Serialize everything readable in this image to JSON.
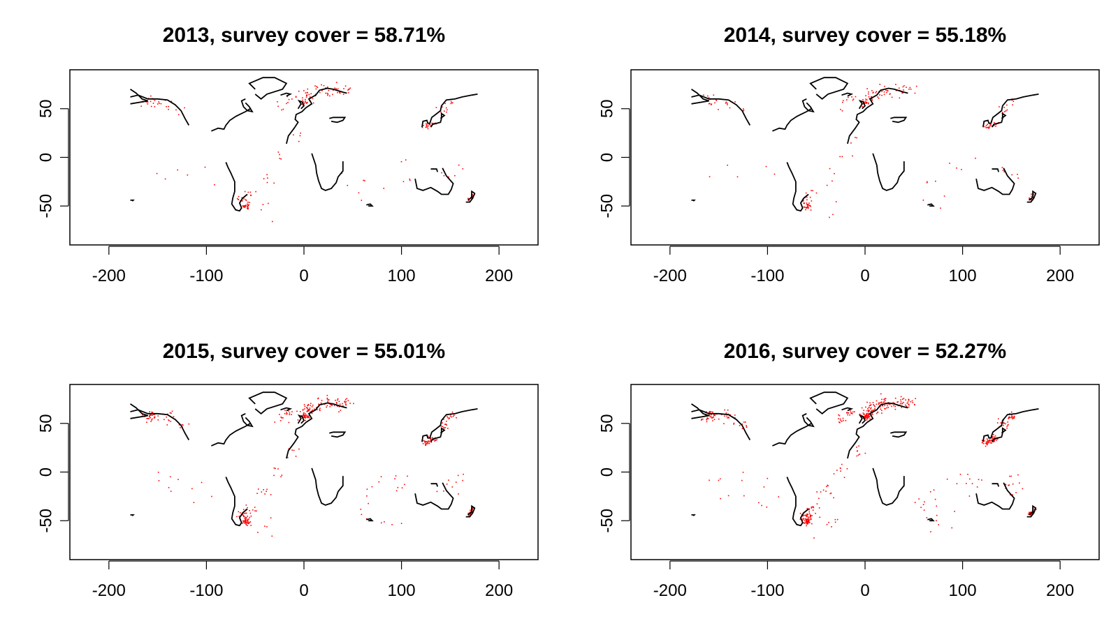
{
  "chart_data": [
    {
      "type": "scatter",
      "title": "2013, survey cover = 58.71%",
      "xlim": [
        -240,
        240
      ],
      "ylim": [
        -90,
        90
      ],
      "x_ticks": [
        -200,
        -100,
        0,
        100,
        200
      ],
      "y_ticks": [
        50,
        0,
        -50
      ],
      "points_color": "#ff0000",
      "outline_color": "#000000",
      "intensity": 0.6
    },
    {
      "type": "scatter",
      "title": "2014, survey cover = 55.18%",
      "xlim": [
        -240,
        240
      ],
      "ylim": [
        -90,
        90
      ],
      "x_ticks": [
        -200,
        -100,
        0,
        100,
        200
      ],
      "y_ticks": [
        50,
        0,
        -50
      ],
      "points_color": "#ff0000",
      "outline_color": "#000000",
      "intensity": 0.55
    },
    {
      "type": "scatter",
      "title": "2015, survey cover = 55.01%",
      "xlim": [
        -240,
        240
      ],
      "ylim": [
        -90,
        90
      ],
      "x_ticks": [
        -200,
        -100,
        0,
        100,
        200
      ],
      "y_ticks": [
        50,
        0,
        -50
      ],
      "points_color": "#ff0000",
      "outline_color": "#000000",
      "intensity": 1.0
    },
    {
      "type": "scatter",
      "title": "2016, survey cover = 52.27%",
      "xlim": [
        -240,
        240
      ],
      "ylim": [
        -90,
        90
      ],
      "x_ticks": [
        -200,
        -100,
        0,
        100,
        200
      ],
      "y_ticks": [
        50,
        0,
        -50
      ],
      "points_color": "#ff0000",
      "outline_color": "#000000",
      "intensity": 1.4
    }
  ]
}
